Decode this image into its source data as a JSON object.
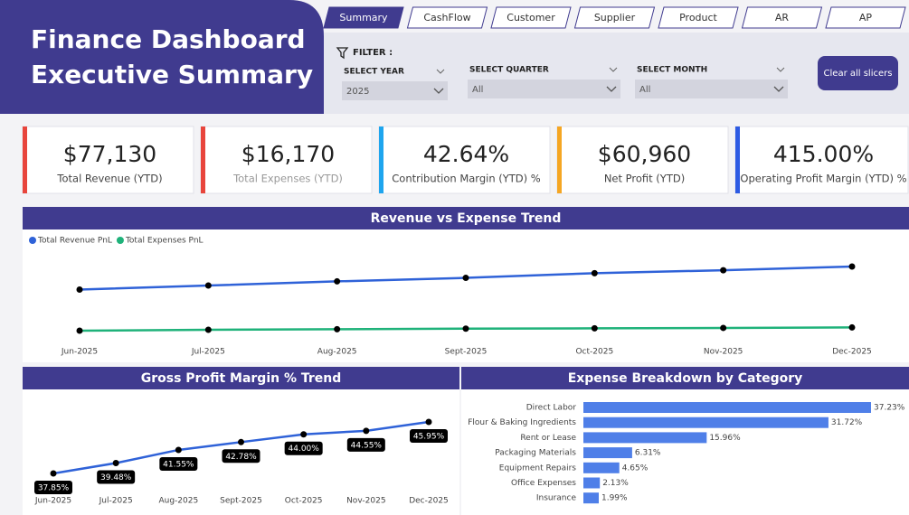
{
  "header": {
    "title_line1": "Finance Dashboard",
    "title_line2": "Executive Summary"
  },
  "tabs": [
    "Summary",
    "CashFlow",
    "Customer",
    "Supplier",
    "Product",
    "AR",
    "AP"
  ],
  "filters": {
    "label": "FILTER :",
    "slicers": [
      {
        "label": "SELECT YEAR",
        "value": "2025"
      },
      {
        "label": "SELECT QUARTER",
        "value": "All"
      },
      {
        "label": "SELECT MONTH",
        "value": "All"
      }
    ],
    "button": "Clear all slicers"
  },
  "kpis": [
    {
      "value": "$77,130",
      "label": "Total Revenue (YTD)",
      "color": "#e8453c"
    },
    {
      "value": "$16,170",
      "label": "Total Expenses (YTD)",
      "color": "#e8453c"
    },
    {
      "value": "42.64%",
      "label": "Contribution Margin (YTD) %",
      "color": "#1ea5ee"
    },
    {
      "value": "$60,960",
      "label": "Net Profit (YTD)",
      "color": "#f5a623"
    },
    {
      "value": "415.00%",
      "label": "Operating Profit Margin (YTD) %",
      "color": "#2d5be3"
    }
  ],
  "chart_data": [
    {
      "type": "line",
      "title": "Revenue vs Expense Trend",
      "categories": [
        "Jun-2025",
        "Jul-2025",
        "Aug-2025",
        "Sept-2025",
        "Oct-2025",
        "Nov-2025",
        "Dec-2025"
      ],
      "series": [
        {
          "name": "Total Revenue PnL",
          "color": "#2f62d8",
          "values": [
            9000,
            9700,
            10400,
            11000,
            11800,
            12300,
            12930
          ]
        },
        {
          "name": "Total Expenses PnL",
          "color": "#1fb27a",
          "values": [
            2000,
            2150,
            2250,
            2350,
            2400,
            2470,
            2550
          ]
        }
      ]
    },
    {
      "type": "line",
      "title": "Gross Profit Margin % Trend",
      "categories": [
        "Jun-2025",
        "Jul-2025",
        "Aug-2025",
        "Sept-2025",
        "Oct-2025",
        "Nov-2025",
        "Dec-2025"
      ],
      "values": [
        37.85,
        39.48,
        41.55,
        42.78,
        44.0,
        44.55,
        45.95
      ],
      "value_labels": [
        "37.85%",
        "39.48%",
        "41.55%",
        "42.78%",
        "44.00%",
        "44.55%",
        "45.95%"
      ],
      "color": "#2f62d8"
    },
    {
      "type": "hbar",
      "title": "Expense Breakdown by Category",
      "categories": [
        "Direct Labor",
        "Flour & Baking Ingredients",
        "Rent or Lease",
        "Packaging Materials",
        "Equipment Repairs",
        "Office Expenses",
        "Insurance"
      ],
      "values": [
        37.23,
        31.72,
        15.96,
        6.31,
        4.65,
        2.13,
        1.99
      ],
      "value_labels": [
        "37.23%",
        "31.72%",
        "15.96%",
        "6.31%",
        "4.65%",
        "2.13%",
        "1.99%"
      ],
      "color": "#4f7fe8"
    }
  ]
}
